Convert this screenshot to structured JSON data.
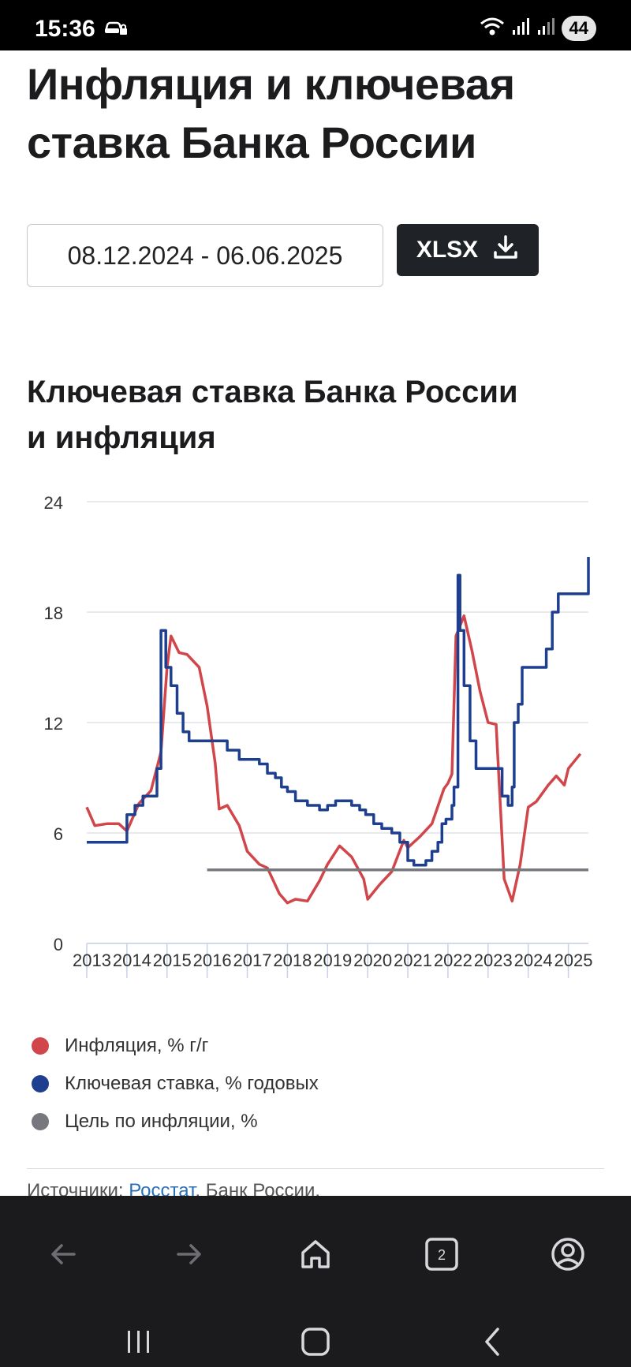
{
  "status_bar": {
    "time": "15:36",
    "battery": "44"
  },
  "page": {
    "title": "Инфляция и ключевая ставка Банка России",
    "date_range": "08.12.2024 - 06.06.2025",
    "export_label": "XLSX"
  },
  "chart": {
    "title_line1": "Ключевая ставка Банка России",
    "title_line2": "и инфляция"
  },
  "colors": {
    "inflation": "#d0464a",
    "key_rate": "#1e3f8f",
    "target": "#77787d"
  },
  "chart_data": {
    "type": "line",
    "ylim": [
      0,
      24
    ],
    "yticks": [
      0,
      6,
      12,
      18,
      24
    ],
    "xticks": [
      "2013",
      "2014",
      "2015",
      "2016",
      "2017",
      "2018",
      "2019",
      "2020",
      "2021",
      "2022",
      "2023",
      "2024",
      "2025"
    ],
    "legend_position": "bottom",
    "grid": true,
    "series": [
      {
        "name": "Инфляция, % г/г",
        "color": "#d0464a",
        "x": [
          2013.0,
          2013.2,
          2013.5,
          2013.8,
          2014.0,
          2014.3,
          2014.6,
          2014.85,
          2015.0,
          2015.1,
          2015.3,
          2015.5,
          2015.8,
          2016.0,
          2016.2,
          2016.3,
          2016.5,
          2016.8,
          2017.0,
          2017.3,
          2017.5,
          2017.8,
          2018.0,
          2018.2,
          2018.5,
          2018.8,
          2019.0,
          2019.3,
          2019.6,
          2019.9,
          2020.0,
          2020.3,
          2020.6,
          2020.9,
          2021.0,
          2021.3,
          2021.6,
          2021.9,
          2022.0,
          2022.1,
          2022.2,
          2022.4,
          2022.6,
          2022.8,
          2023.0,
          2023.2,
          2023.4,
          2023.6,
          2023.8,
          2024.0,
          2024.2,
          2024.5,
          2024.7,
          2024.9,
          2025.0,
          2025.3
        ],
        "values": [
          7.4,
          6.4,
          6.5,
          6.5,
          6.1,
          7.6,
          8.3,
          10.4,
          15.0,
          16.7,
          15.8,
          15.7,
          15.0,
          12.9,
          9.8,
          7.3,
          7.5,
          6.4,
          5.0,
          4.3,
          4.1,
          2.7,
          2.2,
          2.4,
          2.3,
          3.4,
          4.3,
          5.3,
          4.7,
          3.5,
          2.4,
          3.2,
          3.9,
          5.6,
          5.2,
          5.8,
          6.5,
          8.4,
          8.7,
          9.2,
          16.7,
          17.8,
          15.9,
          13.7,
          12.0,
          11.9,
          3.5,
          2.3,
          4.3,
          7.4,
          7.7,
          8.6,
          9.1,
          8.6,
          9.5,
          10.3
        ]
      },
      {
        "name": "Ключевая ставка, % годовых",
        "color": "#1e3f8f",
        "x": [
          2013.0,
          2013.7,
          2014.0,
          2014.2,
          2014.4,
          2014.6,
          2014.75,
          2014.85,
          2014.97,
          2015.1,
          2015.25,
          2015.4,
          2015.55,
          2015.7,
          2016.0,
          2016.4,
          2016.5,
          2016.8,
          2017.1,
          2017.3,
          2017.5,
          2017.7,
          2017.85,
          2018.0,
          2018.2,
          2018.5,
          2018.8,
          2019.0,
          2019.2,
          2019.4,
          2019.6,
          2019.8,
          2019.95,
          2020.15,
          2020.35,
          2020.6,
          2020.8,
          2021.0,
          2021.15,
          2021.3,
          2021.45,
          2021.6,
          2021.75,
          2021.85,
          2021.95,
          2022.1,
          2022.15,
          2022.25,
          2022.3,
          2022.4,
          2022.55,
          2022.7,
          2023.35,
          2023.5,
          2023.6,
          2023.65,
          2023.75,
          2023.85,
          2024.45,
          2024.6,
          2024.75,
          2025.5
        ],
        "values": [
          5.5,
          5.5,
          7.0,
          7.5,
          8.0,
          8.0,
          9.5,
          17.0,
          15.0,
          14.0,
          12.5,
          11.5,
          11.0,
          11.0,
          11.0,
          11.0,
          10.5,
          10.0,
          10.0,
          9.75,
          9.25,
          9.0,
          8.5,
          8.25,
          7.75,
          7.5,
          7.25,
          7.5,
          7.75,
          7.75,
          7.5,
          7.25,
          7.0,
          6.5,
          6.25,
          6.0,
          5.5,
          4.5,
          4.25,
          4.25,
          4.5,
          5.0,
          5.5,
          6.5,
          6.75,
          7.5,
          8.5,
          20.0,
          17.0,
          14.0,
          11.0,
          9.5,
          8.0,
          7.5,
          8.5,
          12.0,
          13.0,
          15.0,
          16.0,
          18.0,
          19.0,
          21.0
        ]
      },
      {
        "name": "Цель по инфляции, %",
        "color": "#77787d",
        "x": [
          2016.0,
          2025.5
        ],
        "values": [
          4,
          4
        ]
      }
    ]
  },
  "legend": {
    "inflation": "Инфляция, % г/г",
    "key_rate": "Ключевая ставка, % годовых",
    "target": "Цель по инфляции, %"
  },
  "sources": {
    "label": "Источники:",
    "link": "Росстат",
    "rest": ", Банк России."
  },
  "browser": {
    "tabs_count": "2"
  }
}
